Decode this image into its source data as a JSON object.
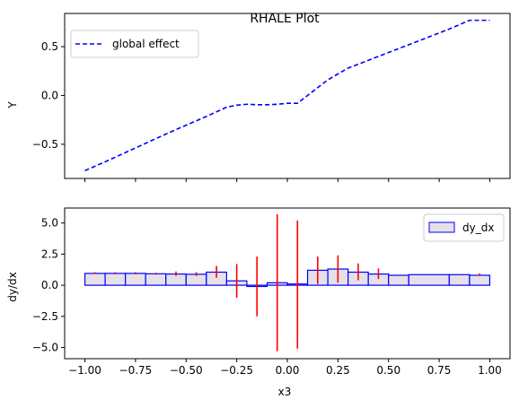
{
  "chart_data": [
    {
      "type": "line",
      "title": "RHALE Plot",
      "xlabel": "",
      "ylabel": "Y",
      "xlim": [
        -1.1,
        1.1
      ],
      "ylim": [
        -0.85,
        0.84
      ],
      "grid": false,
      "legend_placement": "top-left",
      "x_ticks": [
        -1.0,
        -0.75,
        -0.5,
        -0.25,
        0.0,
        0.25,
        0.5,
        0.75,
        1.0
      ],
      "y_ticks": [
        -0.5,
        0.0,
        0.5
      ],
      "y_tick_labels": [
        "−0.5",
        "0.0",
        "0.5"
      ],
      "series": [
        {
          "name": "global effect",
          "color": "#0000ff",
          "style": "dashed",
          "x": [
            -1.0,
            -0.9,
            -0.8,
            -0.7,
            -0.6,
            -0.5,
            -0.4,
            -0.3,
            -0.25,
            -0.2,
            -0.15,
            -0.1,
            -0.05,
            0.0,
            0.05,
            0.1,
            0.15,
            0.2,
            0.25,
            0.3,
            0.4,
            0.5,
            0.6,
            0.7,
            0.8,
            0.9,
            1.0
          ],
          "y": [
            -0.77,
            -0.68,
            -0.585,
            -0.49,
            -0.395,
            -0.305,
            -0.215,
            -0.12,
            -0.1,
            -0.09,
            -0.095,
            -0.095,
            -0.09,
            -0.08,
            -0.08,
            0.0,
            0.08,
            0.16,
            0.22,
            0.28,
            0.36,
            0.44,
            0.52,
            0.6,
            0.68,
            0.77,
            0.77
          ]
        }
      ]
    },
    {
      "type": "bar",
      "title": "",
      "xlabel": "x3",
      "ylabel": "dy/dx",
      "xlim": [
        -1.1,
        1.1
      ],
      "ylim": [
        -5.9,
        6.2
      ],
      "grid": false,
      "legend_placement": "top-right",
      "x_ticks": [
        -1.0,
        -0.75,
        -0.5,
        -0.25,
        0.0,
        0.25,
        0.5,
        0.75,
        1.0
      ],
      "x_tick_labels": [
        "−1.00",
        "−0.75",
        "−0.50",
        "−0.25",
        "0.00",
        "0.25",
        "0.50",
        "0.75",
        "1.00"
      ],
      "y_ticks": [
        -5.0,
        -2.5,
        0.0,
        2.5,
        5.0
      ],
      "y_tick_labels": [
        "−5.0",
        "−2.5",
        "0.0",
        "2.5",
        "5.0"
      ],
      "series": [
        {
          "name": "dy_dx",
          "edge_color": "#0000ff",
          "fill_color": "#e6e1e8",
          "bins": [
            {
              "x0": -1.0,
              "x1": -0.9,
              "value": 0.95
            },
            {
              "x0": -0.9,
              "x1": -0.8,
              "value": 0.95
            },
            {
              "x0": -0.8,
              "x1": -0.7,
              "value": 0.95
            },
            {
              "x0": -0.7,
              "x1": -0.6,
              "value": 0.92
            },
            {
              "x0": -0.6,
              "x1": -0.5,
              "value": 0.9
            },
            {
              "x0": -0.5,
              "x1": -0.4,
              "value": 0.88
            },
            {
              "x0": -0.4,
              "x1": -0.3,
              "value": 1.05
            },
            {
              "x0": -0.3,
              "x1": -0.2,
              "value": 0.35
            },
            {
              "x0": -0.2,
              "x1": -0.1,
              "value": -0.1
            },
            {
              "x0": -0.1,
              "x1": 0.0,
              "value": 0.2
            },
            {
              "x0": 0.0,
              "x1": 0.1,
              "value": 0.1
            },
            {
              "x0": 0.1,
              "x1": 0.2,
              "value": 1.2
            },
            {
              "x0": 0.2,
              "x1": 0.3,
              "value": 1.3
            },
            {
              "x0": 0.3,
              "x1": 0.4,
              "value": 1.05
            },
            {
              "x0": 0.4,
              "x1": 0.5,
              "value": 0.9
            },
            {
              "x0": 0.5,
              "x1": 0.6,
              "value": 0.8
            },
            {
              "x0": 0.6,
              "x1": 0.8,
              "value": 0.85
            },
            {
              "x0": 0.8,
              "x1": 0.9,
              "value": 0.85
            },
            {
              "x0": 0.9,
              "x1": 1.0,
              "value": 0.8
            }
          ]
        }
      ],
      "error_bars": {
        "color": "#ff0000",
        "items": [
          {
            "x": -0.95,
            "low": 0.9,
            "high": 1.05
          },
          {
            "x": -0.85,
            "low": 0.88,
            "high": 1.05
          },
          {
            "x": -0.75,
            "low": 0.88,
            "high": 1.05
          },
          {
            "x": -0.65,
            "low": 0.85,
            "high": 1.0
          },
          {
            "x": -0.55,
            "low": 0.75,
            "high": 1.1
          },
          {
            "x": -0.45,
            "low": 0.75,
            "high": 1.05
          },
          {
            "x": -0.35,
            "low": 0.6,
            "high": 1.55
          },
          {
            "x": -0.25,
            "low": -1.0,
            "high": 1.7
          },
          {
            "x": -0.15,
            "low": -2.5,
            "high": 2.3
          },
          {
            "x": -0.05,
            "low": -5.3,
            "high": 5.7
          },
          {
            "x": 0.05,
            "low": -5.1,
            "high": 5.2
          },
          {
            "x": 0.15,
            "low": 0.1,
            "high": 2.3
          },
          {
            "x": 0.25,
            "low": 0.2,
            "high": 2.4
          },
          {
            "x": 0.35,
            "low": 0.4,
            "high": 1.75
          },
          {
            "x": 0.45,
            "low": 0.5,
            "high": 1.35
          },
          {
            "x": 0.95,
            "low": 0.75,
            "high": 0.95
          }
        ]
      }
    }
  ]
}
